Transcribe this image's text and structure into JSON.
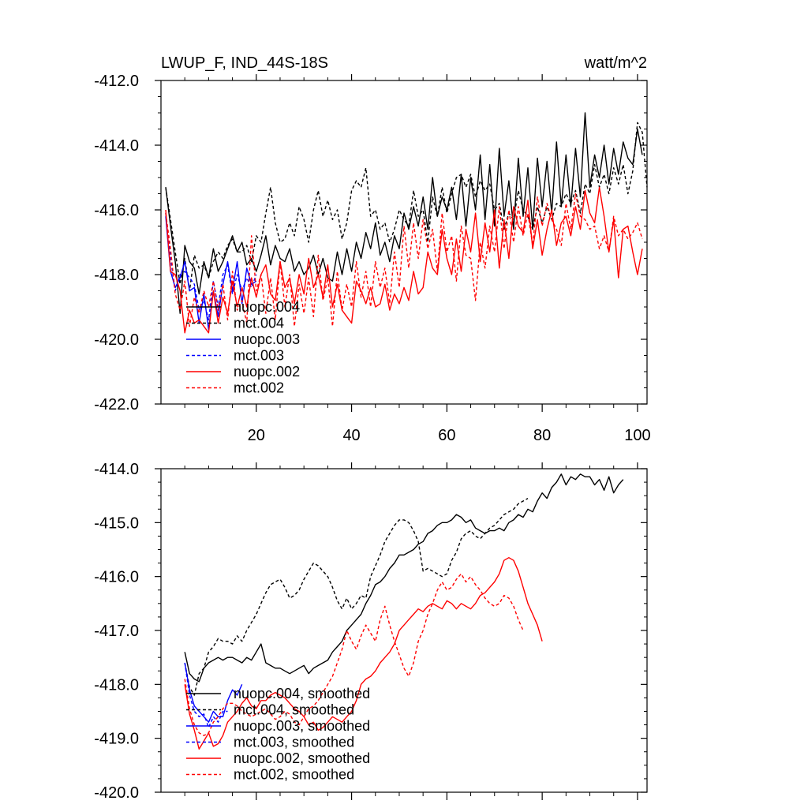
{
  "chart_data": [
    {
      "type": "line",
      "title": "LWUP_F, IND_44S-18S",
      "units": "watt/m^2",
      "xlim": [
        0,
        102
      ],
      "ylim": [
        -422,
        -412
      ],
      "xticks": [
        20,
        40,
        60,
        80,
        100
      ],
      "xtick_labels": [
        "20",
        "40",
        "60",
        "80",
        "100"
      ],
      "yticks": [
        -412,
        -414,
        -416,
        -418,
        -420,
        -422
      ],
      "ytick_labels": [
        "-412.0",
        "-414.0",
        "-416.0",
        "-418.0",
        "-420.0",
        "-422.0"
      ],
      "legend_position": "bottom-left",
      "series": [
        {
          "name": "nuopc.004",
          "color": "#000000",
          "dash": "solid",
          "x_start": 1,
          "values": [
            -415.3,
            -416.5,
            -417.6,
            -419.2,
            -417.1,
            -417.6,
            -417.8,
            -418.6,
            -417.6,
            -418.1,
            -417.2,
            -417.9,
            -417.6,
            -417.2,
            -416.8,
            -417.3,
            -417.0,
            -417.7,
            -417.5,
            -417.9,
            -417.4,
            -416.8,
            -417.7,
            -417.1,
            -417.5,
            -417.6,
            -417.2,
            -417.9,
            -417.6,
            -418.0,
            -417.8,
            -417.4,
            -418.0,
            -417.5,
            -418.1,
            -418.2,
            -417.3,
            -418.0,
            -417.2,
            -417.9,
            -417.0,
            -417.5,
            -416.7,
            -417.2,
            -416.4,
            -417.4,
            -417.0,
            -417.6,
            -416.8,
            -417.2,
            -416.1,
            -416.6,
            -415.9,
            -416.5,
            -415.6,
            -416.6,
            -415.0,
            -416.2,
            -415.6,
            -416.0,
            -415.3,
            -416.3,
            -414.9,
            -416.5,
            -415.0,
            -416.0,
            -414.3,
            -416.3,
            -414.6,
            -416.5,
            -414.1,
            -416.2,
            -415.1,
            -416.6,
            -414.4,
            -416.2,
            -414.7,
            -416.6,
            -414.4,
            -415.9,
            -414.5,
            -416.1,
            -413.9,
            -415.9,
            -414.3,
            -415.9,
            -414.1,
            -415.6,
            -413.0,
            -415.3,
            -414.3,
            -415.0,
            -414.0,
            -415.2,
            -414.1,
            -414.9,
            -413.9,
            -414.4,
            -414.6,
            -413.5,
            -414.3
          ]
        },
        {
          "name": "mct.004",
          "color": "#000000",
          "dash": "dashed",
          "x_start": 1,
          "values": [
            -415.3,
            -416.3,
            -417.3,
            -418.3,
            -417.5,
            -418.5,
            -417.4,
            -417.8,
            -417.7,
            -418.1,
            -417.6,
            -417.3,
            -417.5,
            -417.1,
            -416.9,
            -417.3,
            -417.3,
            -417.1,
            -417.6,
            -416.8,
            -417.0,
            -416.1,
            -415.3,
            -416.4,
            -417.0,
            -416.9,
            -416.4,
            -416.8,
            -415.9,
            -416.3,
            -417.0,
            -416.0,
            -415.4,
            -416.2,
            -415.7,
            -416.3,
            -416.0,
            -416.9,
            -416.4,
            -415.4,
            -415.1,
            -415.3,
            -414.7,
            -416.2,
            -416.0,
            -416.6,
            -416.4,
            -417.0,
            -416.6,
            -416.0,
            -416.3,
            -416.5,
            -415.4,
            -416.2,
            -416.0,
            -417.0,
            -415.6,
            -416.2,
            -415.3,
            -416.1,
            -415.5,
            -415.0,
            -414.9,
            -415.3,
            -414.9,
            -415.6,
            -415.1,
            -415.4,
            -415.2,
            -416.0,
            -415.8,
            -416.6,
            -416.1,
            -416.3,
            -415.4,
            -416.0,
            -416.2,
            -416.6,
            -415.9,
            -416.4,
            -415.9,
            -416.3,
            -415.8,
            -415.9,
            -415.5,
            -415.8,
            -415.4,
            -416.1,
            -415.2,
            -415.5,
            -414.6,
            -415.3,
            -414.9,
            -415.5,
            -414.7,
            -415.2,
            -414.6,
            -415.5,
            -414.8,
            -413.3,
            -413.6,
            -415.3
          ]
        },
        {
          "name": "nuopc.003",
          "color": "#0000ff",
          "dash": "solid",
          "x_start": 1,
          "values": [
            -416.2,
            -417.9,
            -418.4,
            -418.1,
            -417.6,
            -418.5,
            -418.4,
            -419.5,
            -418.6,
            -419.7,
            -418.5,
            -419.3,
            -418.3,
            -417.6,
            -418.5,
            -417.6,
            -418.9,
            -417.8,
            -418.3,
            -418.2
          ]
        },
        {
          "name": "mct.003",
          "color": "#0000ff",
          "dash": "dashed",
          "x_start": 1,
          "values": [
            -416.1,
            -417.5,
            -418.5,
            -418.0,
            -417.9,
            -418.1,
            -418.3,
            -419.1,
            -418.8,
            -419.4,
            -418.2,
            -419.0,
            -418.0,
            -417.7,
            -418.6,
            -418.0,
            -418.5,
            -418.1,
            -418.4,
            -418.0
          ]
        },
        {
          "name": "nuopc.002",
          "color": "#ff0000",
          "dash": "solid",
          "x_start": 1,
          "values": [
            -416.0,
            -417.9,
            -418.0,
            -418.5,
            -419.8,
            -419.1,
            -419.5,
            -419.4,
            -419.6,
            -419.8,
            -418.5,
            -419.5,
            -418.7,
            -419.2,
            -418.2,
            -419.0,
            -418.4,
            -419.0,
            -418.1,
            -418.7,
            -418.0,
            -417.7,
            -418.6,
            -418.8,
            -417.6,
            -418.4,
            -418.1,
            -418.9,
            -418.0,
            -418.6,
            -417.5,
            -418.4,
            -418.0,
            -418.7,
            -417.7,
            -419.0,
            -418.3,
            -419.1,
            -419.3,
            -419.5,
            -418.2,
            -418.5,
            -418.9,
            -418.4,
            -419.0,
            -418.9,
            -418.3,
            -419.1,
            -418.6,
            -418.9,
            -418.4,
            -418.8,
            -417.9,
            -418.6,
            -418.4,
            -417.3,
            -417.8,
            -418.0,
            -416.6,
            -417.5,
            -418.0,
            -416.9,
            -417.9,
            -416.6,
            -417.3,
            -416.1,
            -417.6,
            -416.4,
            -417.3,
            -416.0,
            -417.8,
            -416.3,
            -417.5,
            -415.9,
            -416.5,
            -416.7,
            -415.7,
            -417.2,
            -416.3,
            -417.4,
            -416.6,
            -416.0,
            -417.1,
            -416.4,
            -416.2,
            -416.8,
            -415.9,
            -416.6,
            -415.4,
            -416.1,
            -416.4,
            -415.3,
            -416.2,
            -417.3,
            -416.3,
            -418.1,
            -416.6,
            -416.5,
            -417.3,
            -418.0,
            -417.2
          ]
        },
        {
          "name": "mct.002",
          "color": "#ff0000",
          "dash": "dashed",
          "x_start": 1,
          "values": [
            -416.1,
            -417.2,
            -418.6,
            -419.1,
            -418.2,
            -419.6,
            -418.7,
            -419.2,
            -418.5,
            -419.0,
            -418.2,
            -419.1,
            -418.3,
            -419.4,
            -417.9,
            -419.1,
            -418.8,
            -419.5,
            -416.8,
            -418.5,
            -418.0,
            -419.2,
            -418.1,
            -419.4,
            -417.6,
            -419.0,
            -418.0,
            -419.6,
            -418.3,
            -419.2,
            -418.1,
            -419.3,
            -417.4,
            -418.8,
            -418.1,
            -419.6,
            -417.9,
            -419.1,
            -418.3,
            -419.0,
            -417.6,
            -418.7,
            -417.9,
            -419.0,
            -417.6,
            -418.4,
            -417.8,
            -418.9,
            -417.3,
            -418.4,
            -416.5,
            -417.8,
            -416.4,
            -417.5,
            -416.3,
            -417.2,
            -416.6,
            -417.9,
            -416.1,
            -417.3,
            -416.8,
            -418.2,
            -416.5,
            -417.4,
            -417.5,
            -418.8,
            -417.0,
            -417.8,
            -416.5,
            -417.3,
            -415.9,
            -417.2,
            -416.0,
            -417.0,
            -415.9,
            -416.8,
            -416.1,
            -417.1,
            -415.6,
            -416.5,
            -415.8,
            -416.3,
            -416.6,
            -417.1,
            -415.8,
            -416.6,
            -415.5,
            -416.2,
            -416.3,
            -416.6,
            -416.5,
            -417.2,
            -416.8,
            -417.3,
            -416.2,
            -416.8,
            -416.6,
            -416.9,
            -416.7,
            -416.4,
            -416.9
          ]
        }
      ]
    },
    {
      "type": "line",
      "title": "",
      "xlim": [
        0,
        102
      ],
      "ylim": [
        -420,
        -414
      ],
      "xticks": [
        20,
        40,
        60,
        80,
        100
      ],
      "yticks": [
        -414,
        -415,
        -416,
        -417,
        -418,
        -419,
        -420
      ],
      "ytick_labels": [
        "-414.0",
        "-415.0",
        "-416.0",
        "-417.0",
        "-418.0",
        "-419.0",
        "-420.0"
      ],
      "legend_position": "bottom-left",
      "series": [
        {
          "name": "nuopc.004, smoothed",
          "color": "#000000",
          "dash": "solid",
          "x_start": 5,
          "values": [
            -417.4,
            -417.8,
            -417.9,
            -417.95,
            -417.7,
            -417.6,
            -417.55,
            -417.5,
            -417.55,
            -417.5,
            -417.5,
            -417.55,
            -417.6,
            -417.5,
            -417.55,
            -417.4,
            -417.25,
            -417.6,
            -417.65,
            -417.7,
            -417.7,
            -417.75,
            -417.8,
            -417.75,
            -417.7,
            -417.65,
            -417.8,
            -417.7,
            -417.65,
            -417.6,
            -417.55,
            -417.4,
            -417.3,
            -417.2,
            -417.0,
            -416.9,
            -416.8,
            -416.7,
            -416.5,
            -416.35,
            -416.15,
            -416.1,
            -416.0,
            -415.85,
            -415.75,
            -415.6,
            -415.6,
            -415.55,
            -415.5,
            -415.4,
            -415.35,
            -415.2,
            -415.15,
            -415.05,
            -415.0,
            -415.0,
            -414.95,
            -414.85,
            -414.9,
            -415.0,
            -414.95,
            -415.1,
            -415.15,
            -415.2,
            -415.15,
            -415.15,
            -415.1,
            -415.15,
            -415.0,
            -414.95,
            -414.85,
            -414.9,
            -414.75,
            -414.8,
            -414.6,
            -414.45,
            -414.55,
            -414.35,
            -414.25,
            -414.1,
            -414.3,
            -414.15,
            -414.2,
            -414.1,
            -414.15,
            -414.15,
            -414.3,
            -414.2,
            -414.4,
            -414.15,
            -414.45,
            -414.3,
            -414.2
          ]
        },
        {
          "name": "mct.004, smoothed",
          "color": "#000000",
          "dash": "dashed",
          "x_start": 5,
          "values": [
            -417.6,
            -418.05,
            -418.2,
            -417.8,
            -417.7,
            -417.4,
            -417.3,
            -417.15,
            -417.2,
            -417.2,
            -417.25,
            -417.1,
            -417.2,
            -417.0,
            -416.85,
            -416.7,
            -416.5,
            -416.3,
            -416.15,
            -416.1,
            -416.05,
            -416.2,
            -416.4,
            -416.35,
            -416.25,
            -416.05,
            -415.9,
            -415.75,
            -415.8,
            -415.9,
            -416.0,
            -416.2,
            -416.45,
            -416.6,
            -416.4,
            -416.6,
            -416.5,
            -416.35,
            -416.4,
            -416.0,
            -415.8,
            -415.6,
            -415.35,
            -415.2,
            -415.05,
            -414.95,
            -414.95,
            -415.0,
            -415.15,
            -415.35,
            -415.9,
            -415.85,
            -415.9,
            -415.95,
            -416.0,
            -415.95,
            -415.7,
            -415.55,
            -415.3,
            -415.2,
            -415.15,
            -415.25,
            -415.3,
            -415.2,
            -415.1,
            -415.05,
            -414.95,
            -414.85,
            -414.8,
            -414.75,
            -414.65,
            -414.6,
            -414.55
          ]
        },
        {
          "name": "nuopc.003, smoothed",
          "color": "#0000ff",
          "dash": "solid",
          "x_start": 5,
          "values": [
            -417.6,
            -418.1,
            -418.4,
            -418.5,
            -418.6,
            -418.7,
            -418.5,
            -418.6,
            -418.6,
            -418.3,
            -418.1,
            -418.2,
            -418.0
          ]
        },
        {
          "name": "mct.003, smoothed",
          "color": "#0000ff",
          "dash": "dashed",
          "x_start": 5,
          "values": [
            -417.6,
            -418.2,
            -418.5,
            -418.6,
            -418.55,
            -418.8,
            -418.6,
            -418.7,
            -418.5,
            -418.5
          ]
        },
        {
          "name": "nuopc.002, smoothed",
          "color": "#ff0000",
          "dash": "solid",
          "x_start": 5,
          "values": [
            -418.0,
            -418.55,
            -418.85,
            -419.2,
            -419.05,
            -418.9,
            -419.15,
            -419.1,
            -418.95,
            -418.7,
            -418.6,
            -418.5,
            -418.35,
            -418.25,
            -418.4,
            -418.45,
            -418.3,
            -418.3,
            -418.2,
            -418.15,
            -418.2,
            -418.25,
            -418.35,
            -418.45,
            -418.5,
            -418.6,
            -418.75,
            -418.7,
            -418.85,
            -418.8,
            -418.7,
            -418.6,
            -418.65,
            -418.7,
            -418.6,
            -418.5,
            -418.3,
            -418.0,
            -417.9,
            -417.85,
            -417.75,
            -417.6,
            -417.5,
            -417.4,
            -417.25,
            -417.0,
            -416.9,
            -416.8,
            -416.7,
            -416.6,
            -416.65,
            -416.55,
            -416.5,
            -416.55,
            -416.6,
            -416.45,
            -416.5,
            -416.6,
            -416.5,
            -416.55,
            -416.6,
            -416.5,
            -416.35,
            -416.3,
            -416.2,
            -416.1,
            -415.95,
            -415.7,
            -415.65,
            -415.7,
            -415.9,
            -416.2,
            -416.5,
            -416.7,
            -416.9,
            -417.2
          ]
        },
        {
          "name": "mct.002, smoothed",
          "color": "#ff0000",
          "dash": "dashed",
          "x_start": 5,
          "values": [
            -417.9,
            -418.45,
            -418.75,
            -418.9,
            -418.95,
            -418.9,
            -418.7,
            -418.6,
            -418.45,
            -418.35,
            -418.35,
            -418.4,
            -418.5,
            -418.55,
            -418.6,
            -418.55,
            -418.5,
            -418.45,
            -418.55,
            -418.65,
            -418.6,
            -418.5,
            -418.55,
            -418.7,
            -418.75,
            -418.6,
            -418.45,
            -418.4,
            -418.3,
            -418.15,
            -418.0,
            -417.85,
            -417.6,
            -417.35,
            -417.0,
            -417.2,
            -417.35,
            -417.1,
            -416.9,
            -417.05,
            -417.2,
            -416.8,
            -416.55,
            -416.9,
            -417.2,
            -417.45,
            -417.7,
            -417.85,
            -417.6,
            -417.2,
            -417.0,
            -416.7,
            -416.5,
            -416.25,
            -416.1,
            -416.25,
            -416.2,
            -416.05,
            -415.95,
            -416.1,
            -416.0,
            -416.15,
            -416.25,
            -416.4,
            -416.5,
            -416.55,
            -416.5,
            -416.35,
            -416.4,
            -416.55,
            -416.8,
            -417.0
          ]
        }
      ]
    }
  ]
}
